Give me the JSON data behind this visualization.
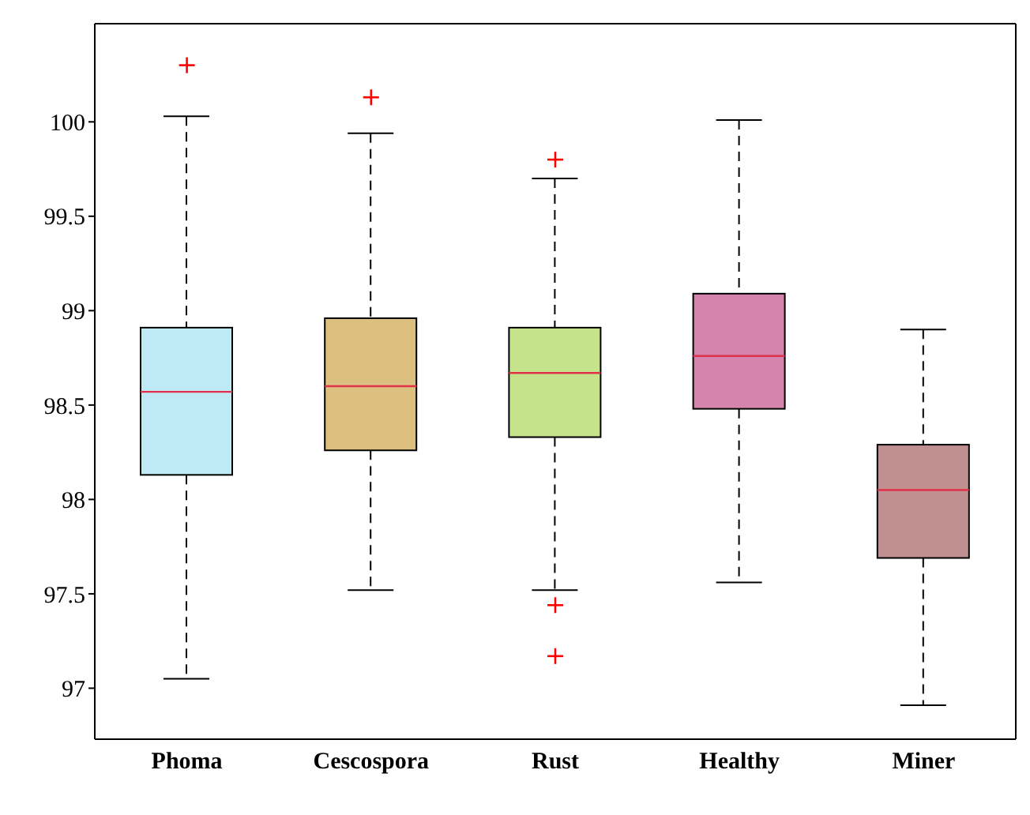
{
  "chart_data": {
    "type": "box",
    "categories": [
      "Phoma",
      "Cescospora",
      "Rust",
      "Healthy",
      "Miner"
    ],
    "boxes": [
      {
        "low": 97.05,
        "q1": 98.13,
        "median": 98.57,
        "q3": 98.91,
        "high": 100.03,
        "outliers": [
          100.3
        ]
      },
      {
        "low": 97.52,
        "q1": 98.26,
        "median": 98.6,
        "q3": 98.96,
        "high": 99.94,
        "outliers": [
          100.13
        ]
      },
      {
        "low": 97.52,
        "q1": 98.33,
        "median": 98.67,
        "q3": 98.91,
        "high": 99.7,
        "outliers": [
          99.8,
          97.44,
          97.17
        ]
      },
      {
        "low": 97.56,
        "q1": 98.48,
        "median": 98.76,
        "q3": 99.09,
        "high": 100.01
      },
      {
        "low": 96.91,
        "q1": 97.69,
        "median": 98.05,
        "q3": 98.29,
        "high": 98.9
      }
    ],
    "colors": [
      "#bfe9f5",
      "#dcc07f",
      "#c5e38a",
      "#d584ad",
      "#c09090"
    ],
    "ylim": [
      96.73,
      100.52
    ],
    "yticks": [
      97,
      97.5,
      98,
      98.5,
      99,
      99.5,
      100
    ],
    "marker": "cross",
    "grid": false
  }
}
